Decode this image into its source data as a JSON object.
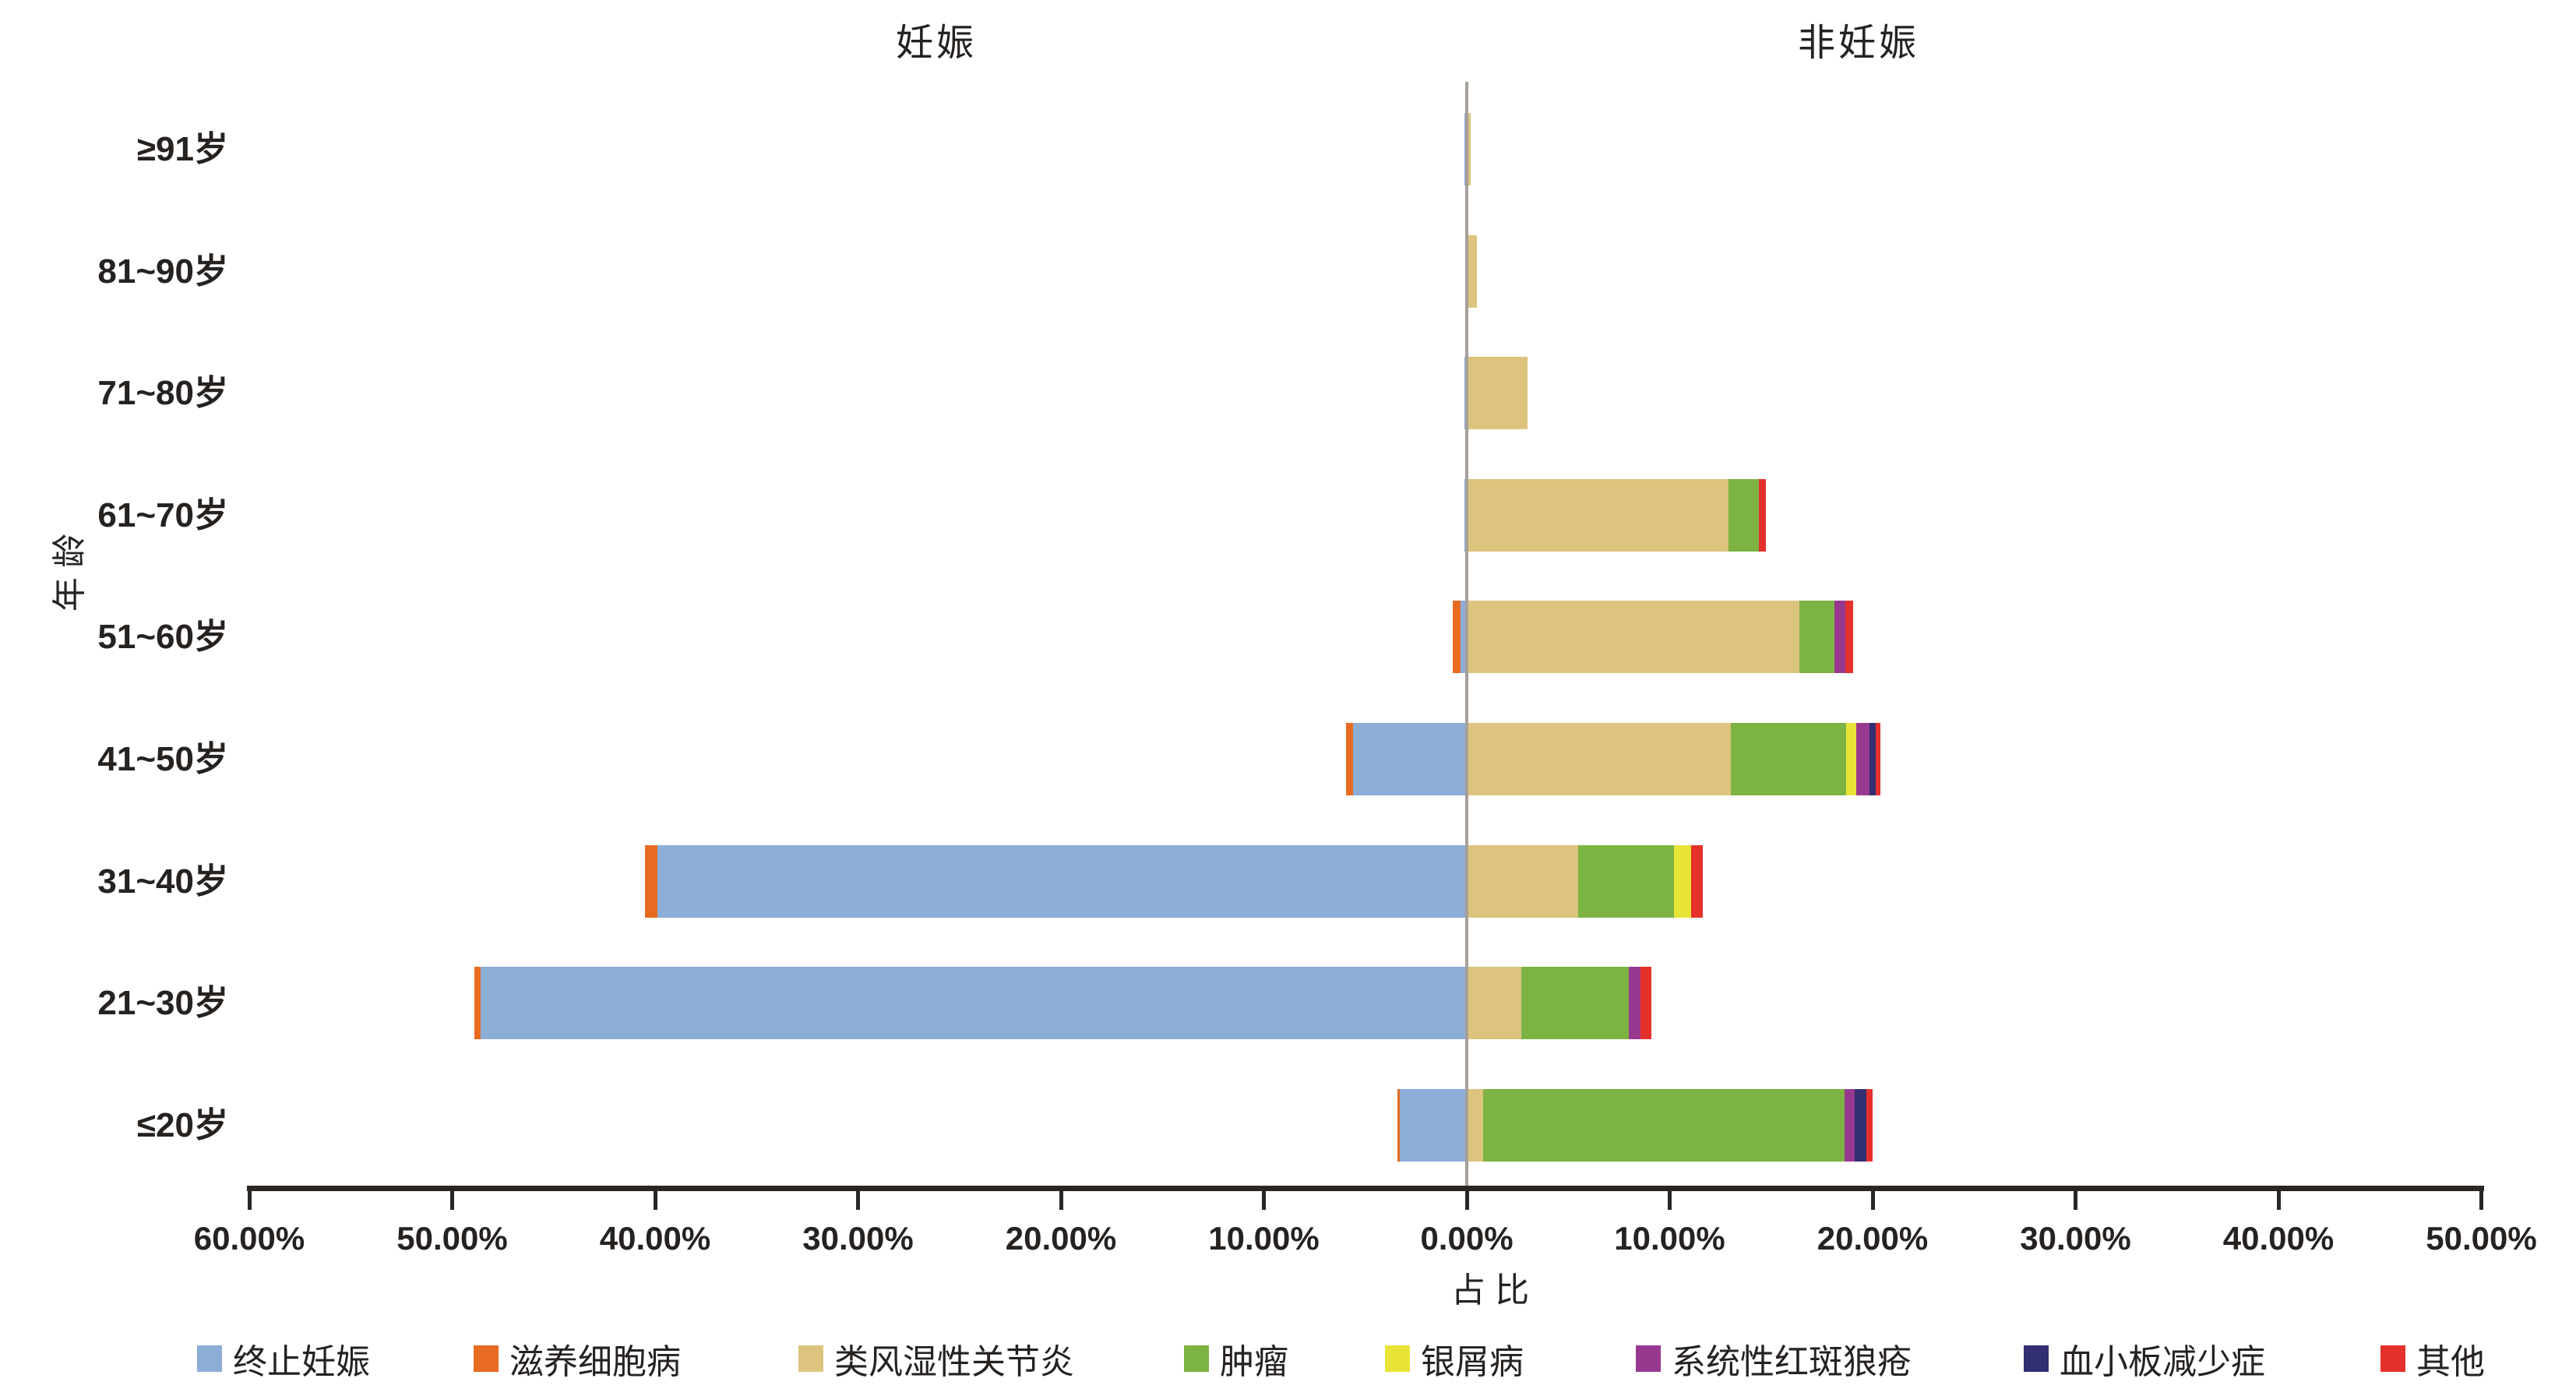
{
  "chart_data": {
    "type": "bar",
    "subtype": "diverging-stacked-horizontal-pyramid",
    "title_left": "妊娠",
    "title_right": "非妊娠",
    "xlabel": "占 比",
    "ylabel": "年 龄",
    "grid": false,
    "legend_position": "bottom",
    "x_axis": {
      "left_max_pct": 60,
      "right_max_pct": 50,
      "ticks": [
        {
          "value": -60,
          "label": "60.00%"
        },
        {
          "value": -50,
          "label": "50.00%"
        },
        {
          "value": -40,
          "label": "40.00%"
        },
        {
          "value": -30,
          "label": "30.00%"
        },
        {
          "value": -20,
          "label": "20.00%"
        },
        {
          "value": -10,
          "label": "10.00%"
        },
        {
          "value": 0,
          "label": "0.00%"
        },
        {
          "value": 10,
          "label": "10.00%"
        },
        {
          "value": 20,
          "label": "20.00%"
        },
        {
          "value": 30,
          "label": "30.00%"
        },
        {
          "value": 40,
          "label": "40.00%"
        },
        {
          "value": 50,
          "label": "50.00%"
        }
      ]
    },
    "categories": [
      "≥91岁",
      "81~90岁",
      "71~80岁",
      "61~70岁",
      "51~60岁",
      "41~50岁",
      "31~40岁",
      "21~30岁",
      "≤20岁"
    ],
    "legend": [
      {
        "name": "终止妊娠",
        "color": "#8CADD6"
      },
      {
        "name": "滋养细胞病",
        "color": "#E76B21"
      },
      {
        "name": "类风湿性关节炎",
        "color": "#DCC47E"
      },
      {
        "name": "肿瘤",
        "color": "#7CB342"
      },
      {
        "name": "银屑病",
        "color": "#E8E437"
      },
      {
        "name": "系统性红斑狼疮",
        "color": "#99388F"
      },
      {
        "name": "血小板减少症",
        "color": "#322F72"
      },
      {
        "name": "其他",
        "color": "#E5312B"
      }
    ],
    "rows": [
      {
        "age": "≥91岁",
        "pregnancy": [
          [
            "终止妊娠",
            0.1
          ]
        ],
        "non_pregnancy": [
          [
            "类风湿性关节炎",
            0.2
          ]
        ]
      },
      {
        "age": "81~90岁",
        "pregnancy": [],
        "non_pregnancy": [
          [
            "类风湿性关节炎",
            0.5
          ]
        ]
      },
      {
        "age": "71~80岁",
        "pregnancy": [
          [
            "终止妊娠",
            0.1
          ]
        ],
        "non_pregnancy": [
          [
            "类风湿性关节炎",
            3.0
          ]
        ]
      },
      {
        "age": "61~70岁",
        "pregnancy": [
          [
            "终止妊娠",
            0.1
          ]
        ],
        "non_pregnancy": [
          [
            "类风湿性关节炎",
            12.9
          ],
          [
            "肿瘤",
            1.5
          ],
          [
            "其他",
            0.35
          ]
        ]
      },
      {
        "age": "51~60岁",
        "pregnancy": [
          [
            "终止妊娠",
            0.3
          ],
          [
            "滋养细胞病",
            0.4
          ]
        ],
        "non_pregnancy": [
          [
            "类风湿性关节炎",
            16.4
          ],
          [
            "肿瘤",
            1.7
          ],
          [
            "系统性红斑狼疮",
            0.55
          ],
          [
            "其他",
            0.4
          ]
        ]
      },
      {
        "age": "41~50岁",
        "pregnancy": [
          [
            "终止妊娠",
            5.6
          ],
          [
            "滋养细胞病",
            0.35
          ]
        ],
        "non_pregnancy": [
          [
            "类风湿性关节炎",
            13.0
          ],
          [
            "肿瘤",
            5.7
          ],
          [
            "银屑病",
            0.5
          ],
          [
            "系统性红斑狼疮",
            0.65
          ],
          [
            "血小板减少症",
            0.3
          ],
          [
            "其他",
            0.25
          ]
        ]
      },
      {
        "age": "31~40岁",
        "pregnancy": [
          [
            "终止妊娠",
            39.9
          ],
          [
            "滋养细胞病",
            0.6
          ]
        ],
        "non_pregnancy": [
          [
            "类风湿性关节炎",
            5.5
          ],
          [
            "肿瘤",
            4.7
          ],
          [
            "银屑病",
            0.85
          ],
          [
            "其他",
            0.6
          ]
        ]
      },
      {
        "age": "21~30岁",
        "pregnancy": [
          [
            "终止妊娠",
            48.6
          ],
          [
            "滋养细胞病",
            0.3
          ]
        ],
        "non_pregnancy": [
          [
            "类风湿性关节炎",
            2.7
          ],
          [
            "肿瘤",
            5.3
          ],
          [
            "系统性红斑狼疮",
            0.55
          ],
          [
            "其他",
            0.55
          ]
        ]
      },
      {
        "age": "≤20岁",
        "pregnancy": [
          [
            "终止妊娠",
            3.3
          ],
          [
            "滋养细胞病",
            0.1
          ]
        ],
        "non_pregnancy": [
          [
            "类风湿性关节炎",
            0.8
          ],
          [
            "肿瘤",
            17.8
          ],
          [
            "系统性红斑狼疮",
            0.5
          ],
          [
            "血小板减少症",
            0.6
          ],
          [
            "其他",
            0.3
          ]
        ]
      }
    ],
    "style_colors": {
      "zero_axis_line": "#A6A09A",
      "baseline": "#2A2624",
      "text": "#262220",
      "background": "#FFFFFF"
    }
  }
}
